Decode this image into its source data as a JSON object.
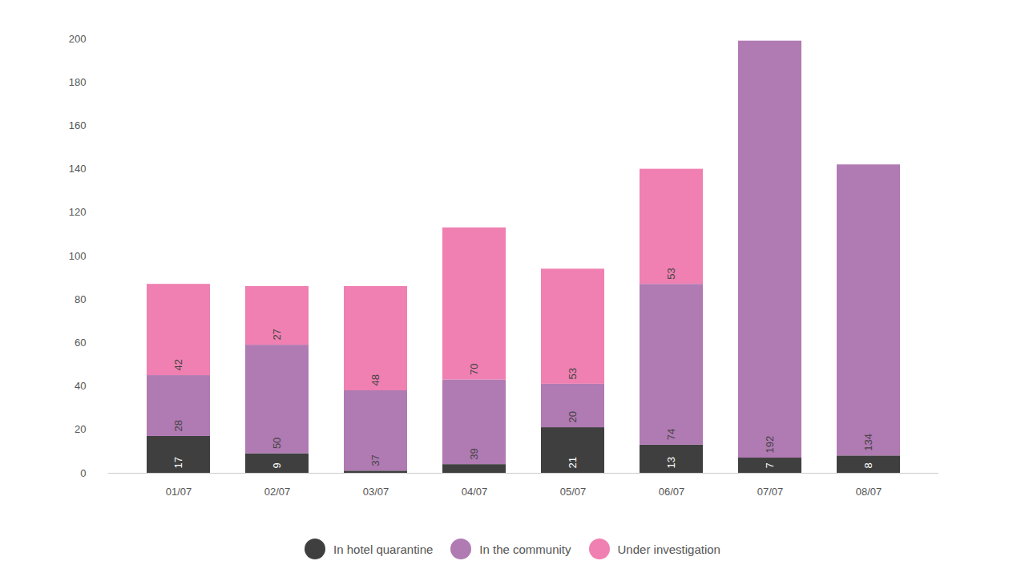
{
  "chart_data": {
    "type": "bar",
    "stacked": true,
    "data_labels": true,
    "grid": false,
    "legend": "bottom",
    "categories": [
      "01/07",
      "02/07",
      "03/07",
      "04/07",
      "05/07",
      "06/07",
      "07/07",
      "08/07"
    ],
    "series": [
      {
        "name": "In hotel quarantine",
        "color": "#3f3f3f",
        "values": [
          17,
          9,
          1,
          4,
          21,
          13,
          7,
          8
        ],
        "value_labels": [
          "17",
          "9",
          null,
          null,
          "21",
          "13",
          "7",
          "8"
        ]
      },
      {
        "name": "In the community",
        "color": "#b07ab3",
        "values": [
          28,
          50,
          37,
          39,
          20,
          74,
          192,
          134
        ],
        "value_labels": [
          "28",
          "50",
          "37",
          "39",
          "20",
          "74",
          "192",
          "134"
        ]
      },
      {
        "name": "Under investigation",
        "color": "#ef80b1",
        "values": [
          42,
          27,
          48,
          70,
          53,
          53,
          null,
          null
        ],
        "value_labels": [
          "42",
          "27",
          "48",
          "70",
          "53",
          "53",
          null,
          null
        ]
      }
    ],
    "ylim": [
      0,
      200
    ],
    "yticks": [
      0,
      20,
      40,
      60,
      80,
      100,
      120,
      140,
      160,
      180,
      200
    ]
  }
}
